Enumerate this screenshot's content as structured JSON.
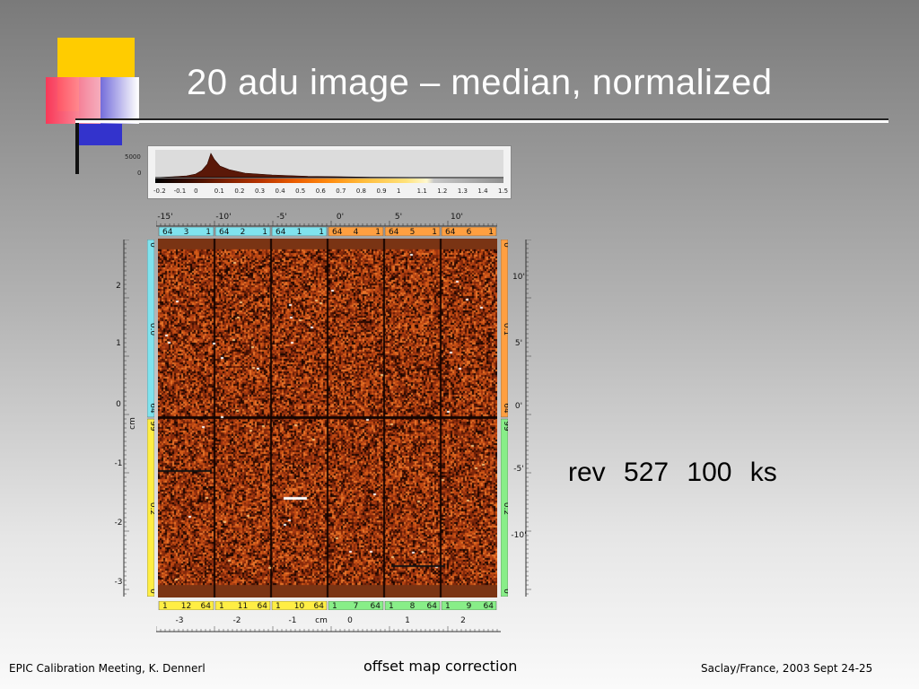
{
  "slide": {
    "title": "20 adu image – median, normalized",
    "annotation": "rev 527 100 ks",
    "footer": {
      "left": "EPIC Calibration Meeting, K. Dennerl",
      "center": "offset map correction",
      "right": "Saclay/France, 2003 Sept 24-25"
    }
  },
  "histogram": {
    "y_ticks": [
      "5000",
      "0"
    ],
    "x_ticks": [
      "-0.2",
      "-0.1",
      "0",
      "0.1",
      "0.2",
      "0.3",
      "0.4",
      "0.5",
      "0.6",
      "0.7",
      "0.8",
      "0.9",
      "1",
      "1.1",
      "1.2",
      "1.3",
      "1.4",
      "1.5"
    ]
  },
  "detector": {
    "top_angle_ticks": [
      "-15'",
      "-10'",
      "-5'",
      "0'",
      "5'",
      "10'"
    ],
    "top_chips": [
      {
        "l": "64",
        "n": "3",
        "r": "1",
        "color": "#7fe3ee"
      },
      {
        "l": "64",
        "n": "2",
        "r": "1",
        "color": "#7fe3ee"
      },
      {
        "l": "64",
        "n": "1",
        "r": "1",
        "color": "#7fe3ee"
      },
      {
        "l": "64",
        "n": "4",
        "r": "1",
        "color": "#ff9f40"
      },
      {
        "l": "64",
        "n": "5",
        "r": "1",
        "color": "#ff9f40"
      },
      {
        "l": "64",
        "n": "6",
        "r": "1",
        "color": "#ff9f40"
      }
    ],
    "bottom_chips": [
      {
        "l": "1",
        "n": "12",
        "r": "64",
        "color": "#ffee44"
      },
      {
        "l": "1",
        "n": "11",
        "r": "64",
        "color": "#ffee44"
      },
      {
        "l": "1",
        "n": "10",
        "r": "64",
        "color": "#ffee44"
      },
      {
        "l": "1",
        "n": "7",
        "r": "64",
        "color": "#88ee88"
      },
      {
        "l": "1",
        "n": "8",
        "r": "64",
        "color": "#88ee88"
      },
      {
        "l": "1",
        "n": "9",
        "r": "64",
        "color": "#88ee88"
      }
    ],
    "left_ticks": [
      "2",
      "1",
      "0",
      "-1",
      "-2",
      "-3"
    ],
    "left_unit": "cm",
    "right_ticks": [
      "10'",
      "5'",
      "0'",
      "-5'",
      "-10'"
    ],
    "bottom_ticks": [
      "-3",
      "-2",
      "-1",
      "0",
      "1",
      "2"
    ],
    "bottom_unit": "cm",
    "left_col_labels": [
      "0",
      "0.0",
      "64",
      "99",
      "0.2",
      "0"
    ],
    "right_col_labels": [
      "0",
      "0.1",
      "64",
      "99",
      "0.2",
      "0"
    ],
    "colors": {
      "quad_cyan": "#7fe3ee",
      "quad_orange": "#ff9f40",
      "quad_yellow": "#ffee44",
      "quad_green": "#88ee88"
    }
  }
}
